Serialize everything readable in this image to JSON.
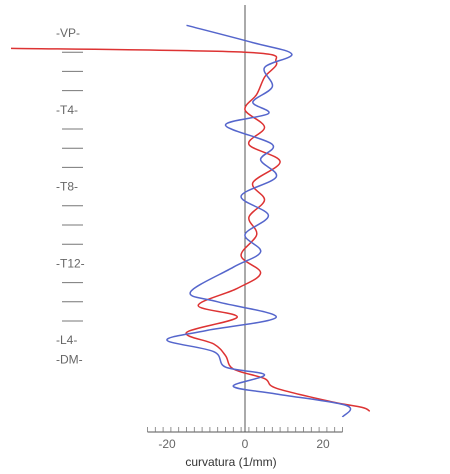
{
  "chart_data": {
    "type": "line",
    "title": "",
    "xlabel": "curvatura (1/mm)",
    "ylabel": "",
    "xlim": [
      -30,
      30
    ],
    "x_ticks": [
      -20,
      0,
      20
    ],
    "y_labels": [
      {
        "label": "-VP-",
        "level": 0
      },
      {
        "label": "",
        "level": 1
      },
      {
        "label": "",
        "level": 2
      },
      {
        "label": "",
        "level": 3
      },
      {
        "label": "-T4-",
        "level": 4
      },
      {
        "label": "",
        "level": 5
      },
      {
        "label": "",
        "level": 6
      },
      {
        "label": "",
        "level": 7
      },
      {
        "label": "-T8-",
        "level": 8
      },
      {
        "label": "",
        "level": 9
      },
      {
        "label": "",
        "level": 10
      },
      {
        "label": "",
        "level": 11
      },
      {
        "label": "-T12-",
        "level": 12
      },
      {
        "label": "",
        "level": 13
      },
      {
        "label": "",
        "level": 14
      },
      {
        "label": "",
        "level": 15
      },
      {
        "label": "-L4-",
        "level": 16
      },
      {
        "label": "-DM-",
        "level": 17
      }
    ],
    "series": [
      {
        "color": "#dd3333",
        "points": [
          {
            "c": -60,
            "d": 0.8
          },
          {
            "c": 0,
            "d": 1.0
          },
          {
            "c": 8,
            "d": 1.5
          },
          {
            "c": 5,
            "d": 2.3
          },
          {
            "c": 3,
            "d": 3.2
          },
          {
            "c": 0,
            "d": 4.0
          },
          {
            "c": 5,
            "d": 4.9
          },
          {
            "c": 1,
            "d": 5.8
          },
          {
            "c": 9,
            "d": 6.7
          },
          {
            "c": 2,
            "d": 7.8
          },
          {
            "c": 5,
            "d": 8.7
          },
          {
            "c": 1,
            "d": 9.6
          },
          {
            "c": 3,
            "d": 10.5
          },
          {
            "c": -1,
            "d": 11.6
          },
          {
            "c": 4,
            "d": 12.5
          },
          {
            "c": -2,
            "d": 13.3
          },
          {
            "c": -12,
            "d": 14.2
          },
          {
            "c": -2,
            "d": 14.8
          },
          {
            "c": -15,
            "d": 15.6
          },
          {
            "c": -8,
            "d": 16.2
          },
          {
            "c": -5,
            "d": 16.8
          },
          {
            "c": -3,
            "d": 17.5
          },
          {
            "c": 5,
            "d": 18.0
          },
          {
            "c": 8,
            "d": 18.5
          },
          {
            "c": 22,
            "d": 19.2
          },
          {
            "c": 30,
            "d": 19.5
          },
          {
            "c": 32,
            "d": 19.7
          }
        ]
      },
      {
        "color": "#5566cc",
        "points": [
          {
            "c": -15,
            "d": -0.4
          },
          {
            "c": 2,
            "d": 0.5
          },
          {
            "c": 12,
            "d": 1.1
          },
          {
            "c": 5,
            "d": 1.8
          },
          {
            "c": 7,
            "d": 2.8
          },
          {
            "c": 2,
            "d": 3.6
          },
          {
            "c": 6,
            "d": 4.2
          },
          {
            "c": -5,
            "d": 4.8
          },
          {
            "c": 7,
            "d": 5.8
          },
          {
            "c": 4,
            "d": 6.6
          },
          {
            "c": 8,
            "d": 7.5
          },
          {
            "c": -1,
            "d": 8.5
          },
          {
            "c": 6,
            "d": 9.5
          },
          {
            "c": 0,
            "d": 10.5
          },
          {
            "c": 4,
            "d": 11.4
          },
          {
            "c": -3,
            "d": 12.2
          },
          {
            "c": -14,
            "d": 13.5
          },
          {
            "c": -7,
            "d": 14.0
          },
          {
            "c": 8,
            "d": 14.8
          },
          {
            "c": -10,
            "d": 15.5
          },
          {
            "c": -20,
            "d": 16.0
          },
          {
            "c": -8,
            "d": 16.6
          },
          {
            "c": -5,
            "d": 17.4
          },
          {
            "c": 5,
            "d": 17.8
          },
          {
            "c": -3,
            "d": 18.4
          },
          {
            "c": 8,
            "d": 18.8
          },
          {
            "c": 26,
            "d": 19.4
          },
          {
            "c": 25,
            "d": 20.0
          }
        ]
      }
    ]
  }
}
